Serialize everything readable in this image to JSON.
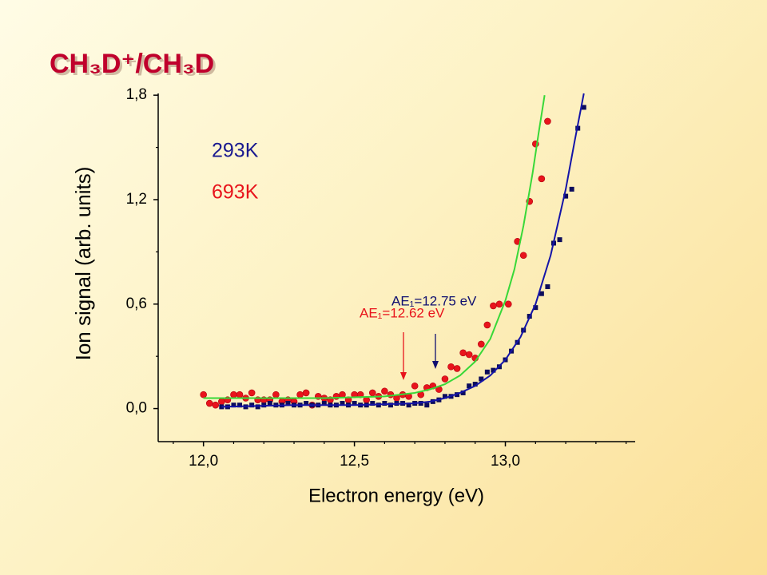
{
  "chart_data": {
    "type": "scatter",
    "title": "CH₃D⁺/CH₃D",
    "x_label": "Electron energy (eV)",
    "y_label": "Ion signal (arb. units)",
    "xlim": [
      11.85,
      13.43
    ],
    "ylim": [
      -0.19,
      1.81
    ],
    "xticks": [
      {
        "value": 12.0,
        "label": "12,0"
      },
      {
        "value": 12.5,
        "label": "12,5"
      },
      {
        "value": 13.0,
        "label": "13,0"
      }
    ],
    "xminorticks": [
      11.9,
      12.1,
      12.2,
      12.3,
      12.4,
      12.6,
      12.7,
      12.8,
      12.9,
      13.1,
      13.2,
      13.3,
      13.4
    ],
    "yticks": [
      {
        "value": 0.0,
        "label": "0,0"
      },
      {
        "value": 0.6,
        "label": "0,6"
      },
      {
        "value": 1.2,
        "label": "1,2"
      },
      {
        "value": 1.8,
        "label": "1,8"
      }
    ],
    "yminorticks": [
      0.3,
      0.9,
      1.5
    ],
    "series": [
      {
        "name": "693K",
        "color": "#e8141c",
        "marker": "circle",
        "x": [
          12.0,
          12.02,
          12.04,
          12.06,
          12.08,
          12.1,
          12.12,
          12.14,
          12.16,
          12.18,
          12.2,
          12.22,
          12.24,
          12.26,
          12.28,
          12.3,
          12.32,
          12.34,
          12.36,
          12.38,
          12.4,
          12.42,
          12.44,
          12.46,
          12.48,
          12.5,
          12.52,
          12.54,
          12.56,
          12.58,
          12.6,
          12.62,
          12.64,
          12.66,
          12.68,
          12.7,
          12.72,
          12.74,
          12.76,
          12.78,
          12.8,
          12.82,
          12.84,
          12.86,
          12.88,
          12.9,
          12.92,
          12.94,
          12.96,
          12.98,
          13.01,
          13.04,
          13.06,
          13.08,
          13.1,
          13.12,
          13.14
        ],
        "values": [
          0.08,
          0.03,
          0.02,
          0.04,
          0.05,
          0.08,
          0.08,
          0.06,
          0.09,
          0.05,
          0.05,
          0.05,
          0.08,
          0.04,
          0.05,
          0.04,
          0.08,
          0.09,
          0.02,
          0.07,
          0.06,
          0.05,
          0.07,
          0.08,
          0.05,
          0.08,
          0.08,
          0.05,
          0.09,
          0.07,
          0.1,
          0.08,
          0.06,
          0.08,
          0.07,
          0.13,
          0.08,
          0.12,
          0.13,
          0.11,
          0.17,
          0.24,
          0.23,
          0.32,
          0.31,
          0.29,
          0.37,
          0.48,
          0.59,
          0.6,
          0.6,
          0.96,
          0.88,
          1.19,
          1.52,
          1.32,
          1.65
        ]
      },
      {
        "name": "293K",
        "color": "#0c0c5c",
        "marker": "square",
        "x": [
          12.06,
          12.08,
          12.1,
          12.12,
          12.14,
          12.16,
          12.18,
          12.2,
          12.22,
          12.24,
          12.26,
          12.28,
          12.3,
          12.32,
          12.34,
          12.36,
          12.38,
          12.4,
          12.42,
          12.44,
          12.46,
          12.48,
          12.5,
          12.52,
          12.54,
          12.56,
          12.58,
          12.6,
          12.62,
          12.64,
          12.66,
          12.68,
          12.7,
          12.72,
          12.74,
          12.76,
          12.78,
          12.8,
          12.82,
          12.84,
          12.86,
          12.88,
          12.9,
          12.92,
          12.94,
          12.96,
          12.98,
          13.0,
          13.02,
          13.04,
          13.06,
          13.08,
          13.1,
          13.12,
          13.14,
          13.16,
          13.18,
          13.2,
          13.22,
          13.24,
          13.26
        ],
        "values": [
          0.01,
          0.01,
          0.02,
          0.02,
          0.01,
          0.02,
          0.01,
          0.02,
          0.03,
          0.02,
          0.02,
          0.03,
          0.02,
          0.02,
          0.03,
          0.02,
          0.02,
          0.03,
          0.02,
          0.02,
          0.03,
          0.02,
          0.03,
          0.02,
          0.02,
          0.03,
          0.02,
          0.03,
          0.02,
          0.03,
          0.03,
          0.02,
          0.03,
          0.03,
          0.02,
          0.04,
          0.05,
          0.07,
          0.07,
          0.08,
          0.09,
          0.13,
          0.14,
          0.17,
          0.21,
          0.22,
          0.24,
          0.28,
          0.33,
          0.38,
          0.45,
          0.53,
          0.58,
          0.66,
          0.7,
          0.95,
          0.97,
          1.22,
          1.26,
          1.61,
          1.73
        ]
      }
    ],
    "fit_lines": [
      {
        "color": "#38d838",
        "x": [
          12.0,
          12.2,
          12.4,
          12.6,
          12.7,
          12.75,
          12.8,
          12.85,
          12.9,
          12.95,
          13.0,
          13.03,
          13.06,
          13.09,
          13.11,
          13.13
        ],
        "values": [
          0.06,
          0.06,
          0.06,
          0.07,
          0.09,
          0.11,
          0.14,
          0.19,
          0.27,
          0.4,
          0.62,
          0.8,
          1.05,
          1.35,
          1.58,
          1.8
        ]
      },
      {
        "color": "#1414a8",
        "x": [
          12.06,
          12.3,
          12.5,
          12.7,
          12.75,
          12.8,
          12.85,
          12.9,
          12.95,
          13.0,
          13.05,
          13.1,
          13.15,
          13.2,
          13.23,
          13.26
        ],
        "values": [
          0.01,
          0.02,
          0.02,
          0.03,
          0.04,
          0.06,
          0.09,
          0.13,
          0.19,
          0.28,
          0.41,
          0.6,
          0.88,
          1.26,
          1.54,
          1.81
        ]
      }
    ],
    "annotations": [
      {
        "text": "AE₁=12.75 eV",
        "color": "#101070"
      },
      {
        "text": "AE₁=12.62 eV",
        "color": "#e8141c"
      }
    ]
  }
}
